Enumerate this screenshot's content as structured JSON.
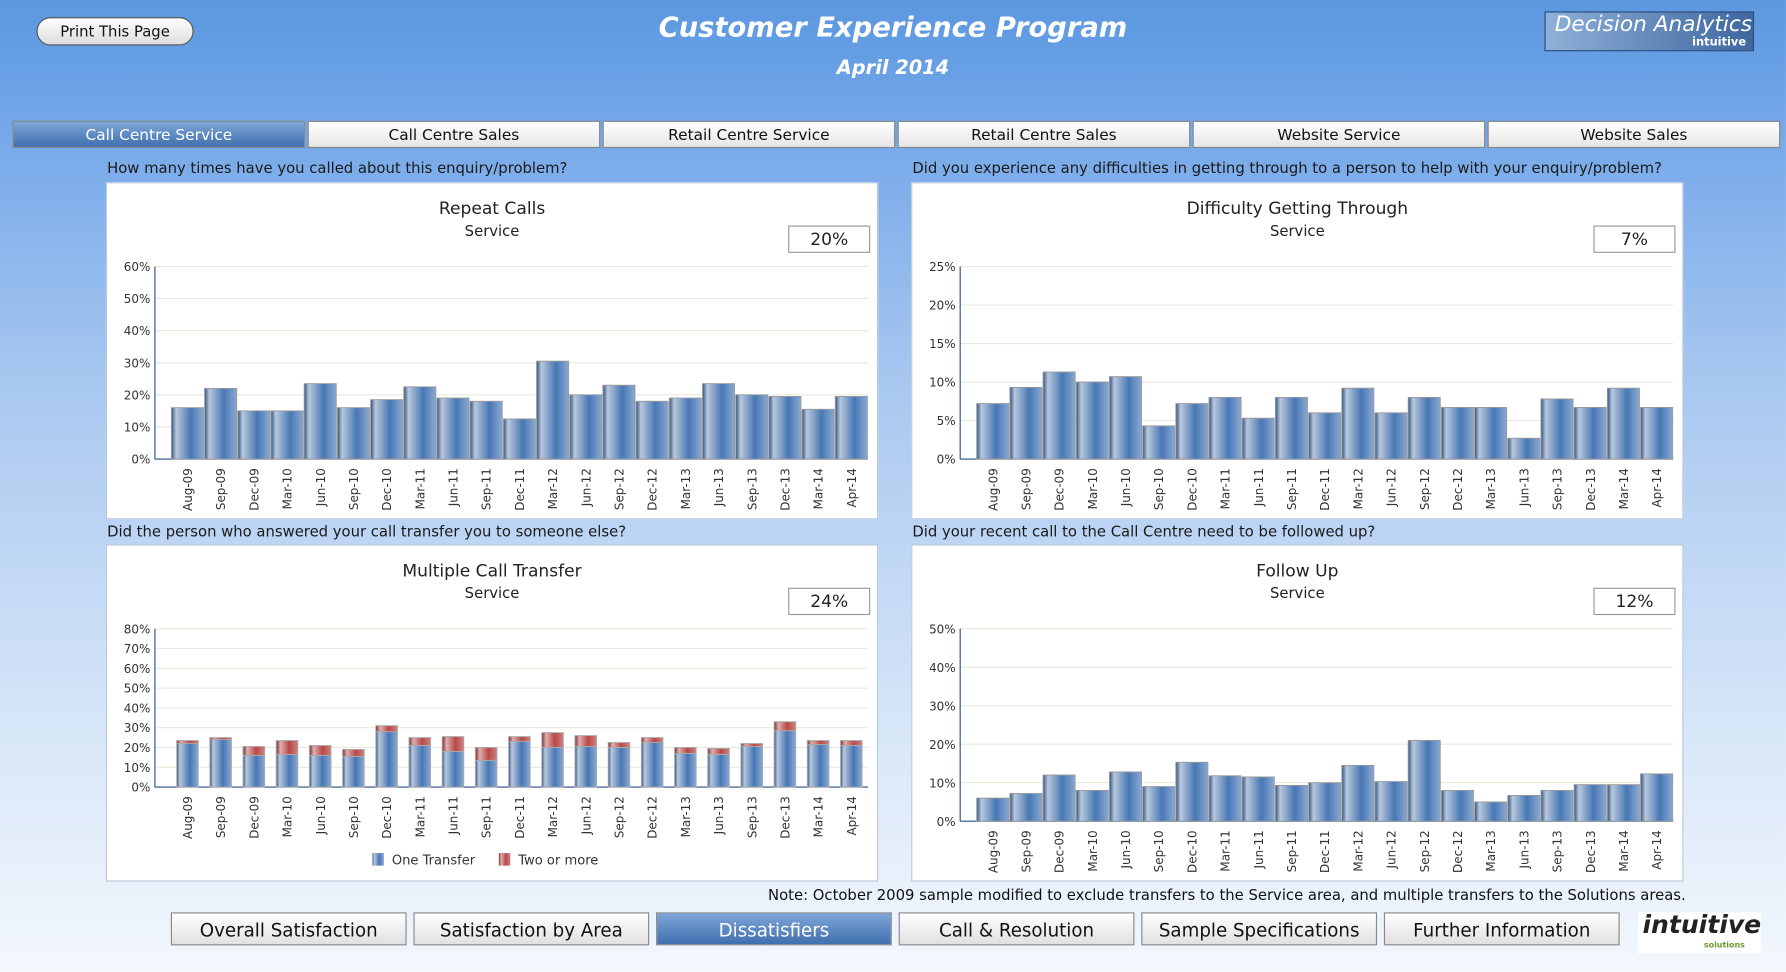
{
  "header": {
    "print_label": "Print This Page",
    "title": "Customer Experience Program",
    "subtitle": "April 2014",
    "logo_text": "Decision Analytics®",
    "logo_sub": "intuitive"
  },
  "tabs": [
    {
      "label": "Call Centre Service",
      "active": true
    },
    {
      "label": "Call Centre Sales"
    },
    {
      "label": "Retail Centre Service"
    },
    {
      "label": "Retail Centre Sales"
    },
    {
      "label": "Website Service"
    },
    {
      "label": "Website Sales"
    }
  ],
  "panels": [
    {
      "question": "How many times have you called about this enquiry/problem?",
      "value": "20%"
    },
    {
      "question": "Did you experience any difficulties in getting through to a person to help with your enquiry/problem?",
      "value": "7%"
    },
    {
      "question": "Did the person who answered your call transfer you to someone else?",
      "value": "24%"
    },
    {
      "question": "Did your recent call to the Call Centre need to be followed up?",
      "value": "12%"
    }
  ],
  "chart_data": [
    {
      "type": "bar",
      "title": "Repeat Calls",
      "subtitle": "Service",
      "ylim": [
        0,
        60
      ],
      "yticks": [
        0,
        10,
        20,
        30,
        40,
        50,
        60
      ],
      "grid": true,
      "categories": [
        "Aug-09",
        "Sep-09",
        "Dec-09",
        "Mar-10",
        "Jun-10",
        "Sep-10",
        "Dec-10",
        "Mar-11",
        "Jun-11",
        "Sep-11",
        "Dec-11",
        "Mar-12",
        "Jun-12",
        "Sep-12",
        "Dec-12",
        "Mar-13",
        "Jun-13",
        "Sep-13",
        "Dec-13",
        "Mar-14",
        "Apr-14"
      ],
      "values": [
        16,
        22,
        15,
        15,
        23.5,
        16,
        18.5,
        22.5,
        19,
        18,
        12.5,
        30.5,
        20,
        23,
        18,
        19,
        23.5,
        20,
        19.5,
        15.5,
        19.5
      ]
    },
    {
      "type": "bar",
      "title": "Difficulty Getting Through",
      "subtitle": "Service",
      "ylim": [
        0,
        25
      ],
      "yticks": [
        0,
        5,
        10,
        15,
        20,
        25
      ],
      "grid": true,
      "categories": [
        "Aug-09",
        "Sep-09",
        "Dec-09",
        "Mar-10",
        "Jun-10",
        "Sep-10",
        "Dec-10",
        "Mar-11",
        "Jun-11",
        "Sep-11",
        "Dec-11",
        "Mar-12",
        "Jun-12",
        "Sep-12",
        "Dec-12",
        "Mar-13",
        "Jun-13",
        "Sep-13",
        "Dec-13",
        "Mar-14",
        "Apr-14"
      ],
      "values": [
        7.2,
        9.3,
        11.3,
        10,
        10.7,
        4.3,
        7.2,
        8,
        5.3,
        8,
        6,
        9.2,
        6,
        8,
        6.7,
        6.7,
        2.7,
        7.8,
        6.7,
        9.2,
        6.7
      ]
    },
    {
      "type": "bar",
      "stacked": true,
      "title": "Multiple Call Transfer",
      "subtitle": "Service",
      "ylim": [
        0,
        80
      ],
      "yticks": [
        0,
        10,
        20,
        30,
        40,
        50,
        60,
        70,
        80
      ],
      "grid": true,
      "legend": "bottom",
      "categories": [
        "Aug-09",
        "Sep-09",
        "Dec-09",
        "Mar-10",
        "Jun-10",
        "Sep-10",
        "Dec-10",
        "Mar-11",
        "Jun-11",
        "Sep-11",
        "Dec-11",
        "Mar-12",
        "Jun-12",
        "Sep-12",
        "Dec-12",
        "Mar-13",
        "Jun-13",
        "Sep-13",
        "Dec-13",
        "Mar-14",
        "Apr-14"
      ],
      "series": [
        {
          "name": "One Transfer",
          "color": "#4a78b5",
          "values": [
            22,
            24,
            16,
            16.5,
            16,
            15.5,
            28,
            21,
            18,
            13.5,
            23,
            20,
            20.5,
            20,
            22.5,
            17,
            16.5,
            20.5,
            28.5,
            21.5,
            21
          ]
        },
        {
          "name": "Two or more",
          "color": "#b94a4a",
          "values": [
            1.5,
            1,
            4.5,
            7,
            5,
            3.5,
            3,
            4,
            7.5,
            6.5,
            2.5,
            7.5,
            5.5,
            2.5,
            2.5,
            3,
            3,
            1.5,
            4.5,
            2,
            2.5
          ]
        }
      ]
    },
    {
      "type": "bar",
      "title": "Follow Up",
      "subtitle": "Service",
      "ylim": [
        0,
        50
      ],
      "yticks": [
        0,
        10,
        20,
        30,
        40,
        50
      ],
      "grid": true,
      "categories": [
        "Aug-09",
        "Sep-09",
        "Dec-09",
        "Mar-10",
        "Jun-10",
        "Sep-10",
        "Dec-10",
        "Mar-11",
        "Jun-11",
        "Sep-11",
        "Dec-11",
        "Mar-12",
        "Jun-12",
        "Sep-12",
        "Dec-12",
        "Mar-13",
        "Jun-13",
        "Sep-13",
        "Dec-13",
        "Mar-14",
        "Apr-14"
      ],
      "values": [
        6,
        7.2,
        12,
        8,
        12.8,
        9,
        15.3,
        11.8,
        11.5,
        9.3,
        10,
        14.5,
        10.3,
        21,
        8,
        5,
        6.7,
        8,
        9.5,
        9.5,
        12.3
      ]
    }
  ],
  "note": "Note: October 2009 sample modified to exclude transfers to the Service area, and multiple transfers to the Solutions areas.",
  "bottom_tabs": [
    {
      "label": "Overall Satisfaction"
    },
    {
      "label": "Satisfaction by Area"
    },
    {
      "label": "Dissatisfiers",
      "active": true
    },
    {
      "label": "Call & Resolution"
    },
    {
      "label": "Sample Specifications"
    },
    {
      "label": "Further Information"
    }
  ],
  "footer_logo": {
    "text": "intuitive",
    "sub": "solutions"
  }
}
